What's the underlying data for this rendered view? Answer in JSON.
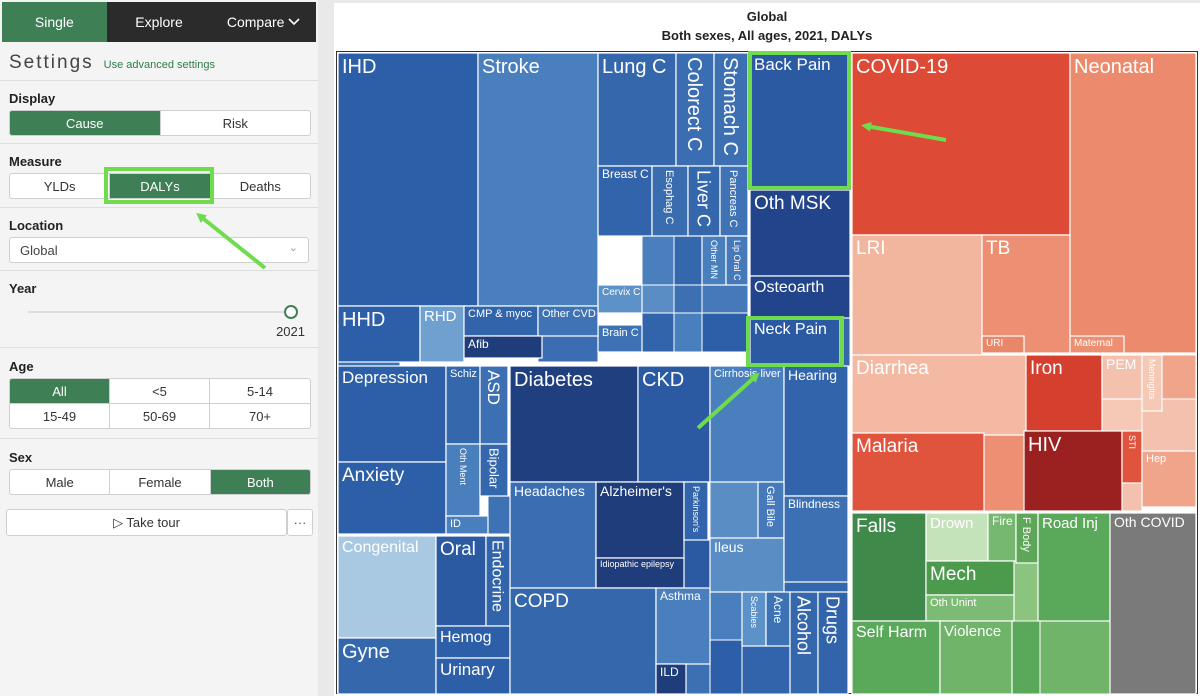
{
  "nav": {
    "tabs": [
      {
        "label": "Single",
        "active": true
      },
      {
        "label": "Explore",
        "active": false
      },
      {
        "label": "Compare",
        "active": false
      }
    ]
  },
  "settings": {
    "title": "Settings",
    "advanced_link": "Use advanced settings",
    "display": {
      "label": "Display",
      "options": [
        "Cause",
        "Risk"
      ],
      "selected": "Cause"
    },
    "measure": {
      "label": "Measure",
      "options": [
        "YLDs",
        "DALYs",
        "Deaths"
      ],
      "selected": "DALYs"
    },
    "location": {
      "label": "Location",
      "value": "Global"
    },
    "year": {
      "label": "Year",
      "value": "2021"
    },
    "age": {
      "label": "Age",
      "options": [
        "All",
        "<5",
        "5-14",
        "15-49",
        "50-69",
        "70+"
      ],
      "selected": "All"
    },
    "sex": {
      "label": "Sex",
      "options": [
        "Male",
        "Female",
        "Both"
      ],
      "selected": "Both"
    },
    "tour_label": "▷ Take tour",
    "more_label": "···"
  },
  "colors": {
    "accent": "#3f7f55",
    "highlight": "#6fdc4e",
    "ncd_blue": "#3a6fb0",
    "communicable_red": "#e04a36",
    "injury_green": "#5fae5f"
  },
  "chart_data": {
    "type": "treemap",
    "title": "Global",
    "subtitle": "Both sexes, All ages, 2021, DALYs",
    "cells": [
      {
        "label": "IHD"
      },
      {
        "label": "Stroke"
      },
      {
        "label": "Lung C"
      },
      {
        "label": "Colorect C"
      },
      {
        "label": "Stomach C"
      },
      {
        "label": "Breast C"
      },
      {
        "label": "Esophag C"
      },
      {
        "label": "Liver C"
      },
      {
        "label": "Pancreas C"
      },
      {
        "label": "Other MN"
      },
      {
        "label": "Lip Oral C"
      },
      {
        "label": "Cervix C"
      },
      {
        "label": "Brain C"
      },
      {
        "label": "HHD"
      },
      {
        "label": "RHD"
      },
      {
        "label": "CMP & myoc"
      },
      {
        "label": "Other CVD"
      },
      {
        "label": "Afib"
      },
      {
        "label": "Back Pain"
      },
      {
        "label": "Oth MSK"
      },
      {
        "label": "Osteoarth"
      },
      {
        "label": "Neck Pain"
      },
      {
        "label": "Depression"
      },
      {
        "label": "Schiz"
      },
      {
        "label": "ASD"
      },
      {
        "label": "Anxiety"
      },
      {
        "label": "Oth Ment"
      },
      {
        "label": "Bipolar"
      },
      {
        "label": "ID"
      },
      {
        "label": "Diabetes"
      },
      {
        "label": "CKD"
      },
      {
        "label": "Cirrhosis liver"
      },
      {
        "label": "Hearing"
      },
      {
        "label": "Headaches"
      },
      {
        "label": "Alzheimer's"
      },
      {
        "label": "Parkinson's"
      },
      {
        "label": "Idiopathic epilepsy"
      },
      {
        "label": "Gall Bile"
      },
      {
        "label": "Ileus"
      },
      {
        "label": "Blindness"
      },
      {
        "label": "Congenital"
      },
      {
        "label": "Oral"
      },
      {
        "label": "Endocrine"
      },
      {
        "label": "Gyne"
      },
      {
        "label": "Hemog"
      },
      {
        "label": "Urinary"
      },
      {
        "label": "COPD"
      },
      {
        "label": "Asthma"
      },
      {
        "label": "ILD"
      },
      {
        "label": "Scabies"
      },
      {
        "label": "Acne"
      },
      {
        "label": "Alcohol"
      },
      {
        "label": "Drugs"
      },
      {
        "label": "COVID-19"
      },
      {
        "label": "Neonatal"
      },
      {
        "label": "LRI"
      },
      {
        "label": "TB"
      },
      {
        "label": "URI"
      },
      {
        "label": "Maternal"
      },
      {
        "label": "Diarrhea"
      },
      {
        "label": "Iron"
      },
      {
        "label": "PEM"
      },
      {
        "label": "Meningitis"
      },
      {
        "label": "Malaria"
      },
      {
        "label": "HIV"
      },
      {
        "label": "STI"
      },
      {
        "label": "Hep"
      },
      {
        "label": "Falls"
      },
      {
        "label": "Drown"
      },
      {
        "label": "Fire"
      },
      {
        "label": "F Body"
      },
      {
        "label": "Road Inj"
      },
      {
        "label": "Oth COVID"
      },
      {
        "label": "Mech"
      },
      {
        "label": "Oth Unint"
      },
      {
        "label": "Self Harm"
      },
      {
        "label": "Violence"
      }
    ]
  }
}
